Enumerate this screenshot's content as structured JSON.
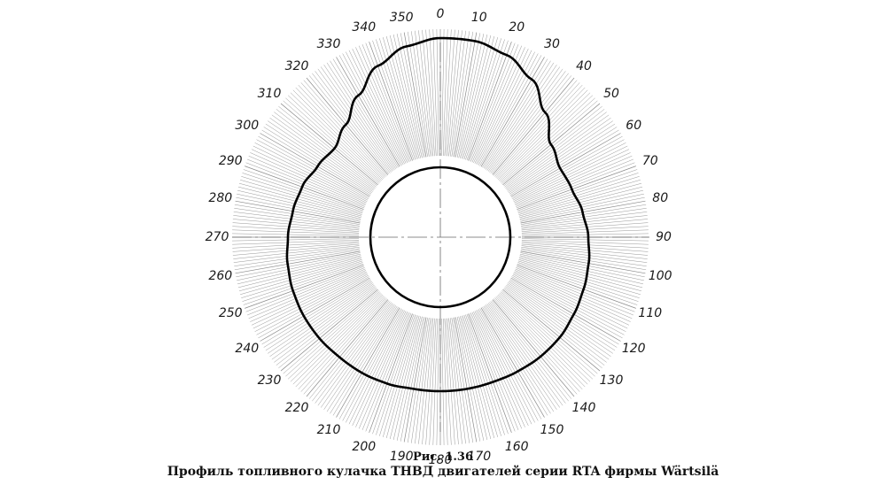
{
  "figure": {
    "number": "Рис. 1.36",
    "title": "Профиль топливного кулачка ТНВД двигателей серии RTA фирмы Wärtsilä"
  },
  "angle_labels": [
    "0",
    "10",
    "20",
    "30",
    "40",
    "50",
    "60",
    "70",
    "80",
    "90",
    "100",
    "110",
    "120",
    "130",
    "140",
    "150",
    "160",
    "170",
    "180",
    "190",
    "200",
    "210",
    "220",
    "230",
    "240",
    "250",
    "260",
    "270",
    "280",
    "290",
    "300",
    "310",
    "320",
    "330",
    "340",
    "350"
  ],
  "colors": {
    "line": "#000000",
    "hatch": "#8a8a8a",
    "text": "#1a1a1a"
  }
}
